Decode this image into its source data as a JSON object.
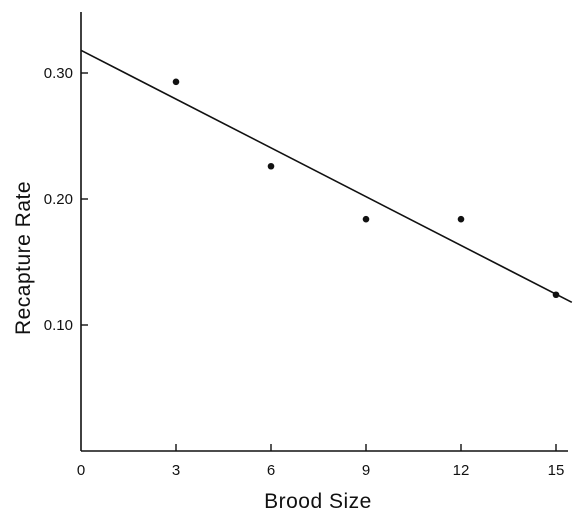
{
  "chart_data": {
    "type": "scatter",
    "title": "",
    "xlabel": "Brood Size",
    "ylabel": "Recapture Rate",
    "xlim": [
      0,
      16
    ],
    "ylim": [
      0,
      0.35
    ],
    "x_ticks": [
      0,
      3,
      6,
      9,
      12,
      15
    ],
    "x_tick_labels": [
      "0",
      "3",
      "6",
      "9",
      "12",
      "15"
    ],
    "y_ticks": [
      0.1,
      0.2,
      0.3
    ],
    "y_tick_labels": [
      "0.10",
      "0.20",
      "0.30"
    ],
    "grid": false,
    "legend": "none",
    "series": [
      {
        "x": [
          3,
          6,
          9,
          12,
          15
        ],
        "y": [
          0.293,
          0.226,
          0.184,
          0.184,
          0.124
        ]
      }
    ],
    "fit_line": {
      "x": [
        0,
        15.5
      ],
      "y": [
        0.318,
        0.118
      ]
    },
    "colors": {
      "ink": "#111111",
      "background": "#ffffff"
    }
  }
}
